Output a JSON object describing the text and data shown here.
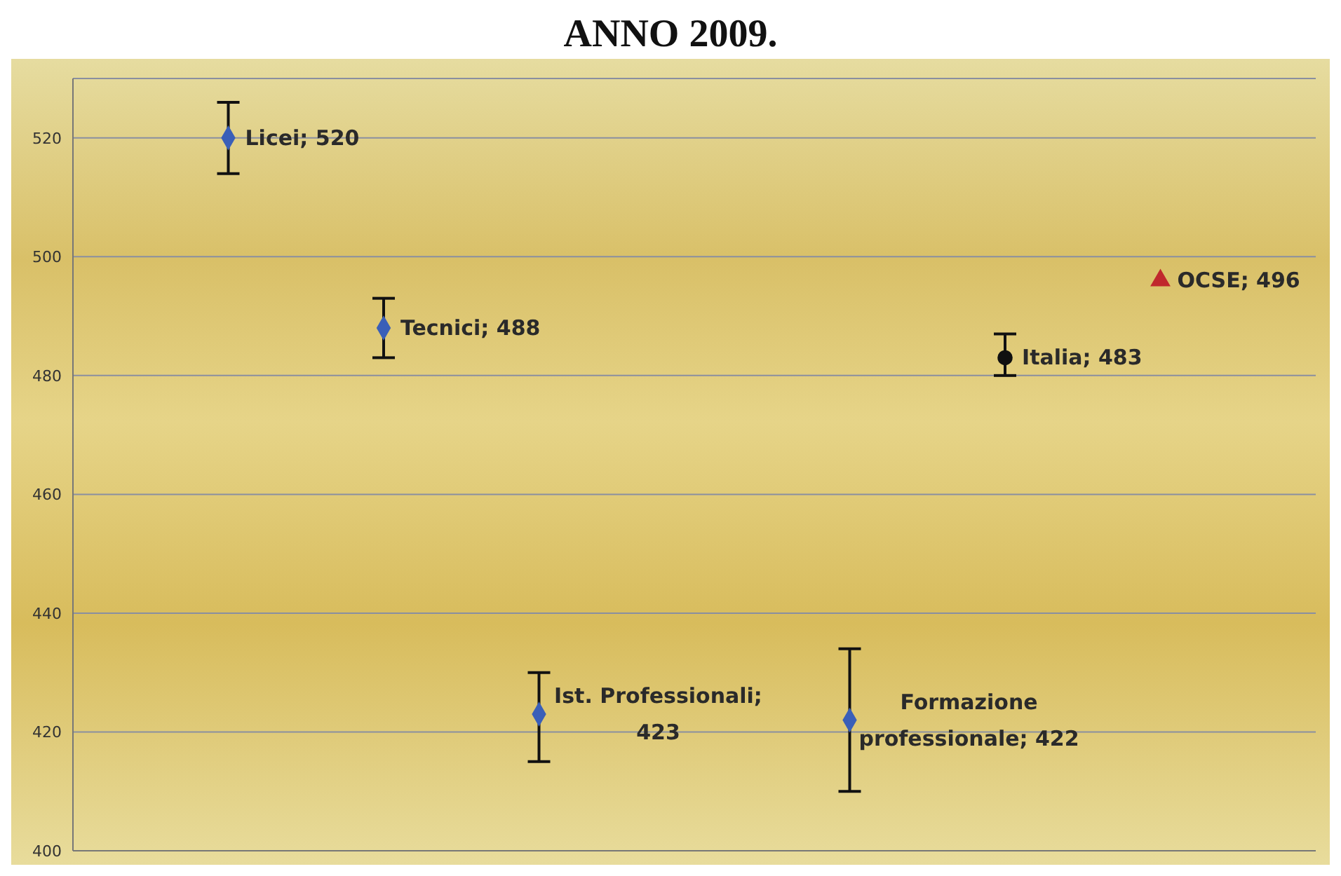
{
  "chart_data": {
    "type": "scatter",
    "title": "ANNO 2009.",
    "categories": [
      null,
      null,
      null,
      null,
      null,
      null,
      null
    ],
    "series": [
      {
        "color": "#3a5fb8",
        "marker": "diamond",
        "values": [
          520,
          488,
          423,
          null,
          422,
          null,
          null
        ],
        "errors": [
          [
            514,
            526
          ],
          [
            483,
            493
          ],
          [
            415,
            430
          ],
          null,
          [
            410,
            434
          ],
          null,
          null
        ],
        "value_labels": [
          "Licei; 520",
          "Tecnici; 488",
          "Ist. Professionali; 423",
          null,
          "Formazione professionale; 422",
          null,
          null
        ]
      },
      {
        "color": "#101010",
        "marker": "circle",
        "values": [
          null,
          null,
          null,
          null,
          null,
          483,
          null
        ],
        "errors": [
          null,
          null,
          null,
          null,
          null,
          [
            480,
            487
          ],
          null
        ],
        "value_labels": [
          null,
          null,
          null,
          null,
          null,
          "Italia; 483",
          null
        ]
      },
      {
        "color": "#c0282d",
        "marker": "triangle",
        "values": [
          null,
          null,
          null,
          null,
          null,
          null,
          496
        ],
        "value_labels": [
          null,
          null,
          null,
          null,
          null,
          null,
          "OCSE; 496"
        ]
      }
    ],
    "ylim": [
      400,
      530
    ],
    "yticks": [
      400,
      420,
      440,
      460,
      480,
      500,
      520
    ],
    "grid": "y",
    "tick_labels": "y"
  }
}
